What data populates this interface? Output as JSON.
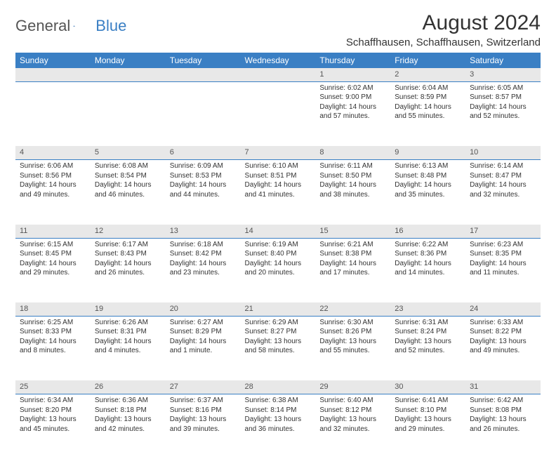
{
  "brand": {
    "part1": "General",
    "part2": "Blue"
  },
  "title": "August 2024",
  "location": "Schaffhausen, Schaffhausen, Switzerland",
  "colors": {
    "header_bg": "#3a7fc4",
    "header_text": "#ffffff",
    "daynum_bg": "#e8e8e8",
    "cell_border": "#3a7fc4",
    "body_text": "#333333",
    "page_bg": "#ffffff"
  },
  "weekdays": [
    "Sunday",
    "Monday",
    "Tuesday",
    "Wednesday",
    "Thursday",
    "Friday",
    "Saturday"
  ],
  "weeks": [
    {
      "nums": [
        "",
        "",
        "",
        "",
        "1",
        "2",
        "3"
      ],
      "cells": [
        {},
        {},
        {},
        {},
        {
          "sunrise": "Sunrise: 6:02 AM",
          "sunset": "Sunset: 9:00 PM",
          "daylight": "Daylight: 14 hours and 57 minutes."
        },
        {
          "sunrise": "Sunrise: 6:04 AM",
          "sunset": "Sunset: 8:59 PM",
          "daylight": "Daylight: 14 hours and 55 minutes."
        },
        {
          "sunrise": "Sunrise: 6:05 AM",
          "sunset": "Sunset: 8:57 PM",
          "daylight": "Daylight: 14 hours and 52 minutes."
        }
      ]
    },
    {
      "nums": [
        "4",
        "5",
        "6",
        "7",
        "8",
        "9",
        "10"
      ],
      "cells": [
        {
          "sunrise": "Sunrise: 6:06 AM",
          "sunset": "Sunset: 8:56 PM",
          "daylight": "Daylight: 14 hours and 49 minutes."
        },
        {
          "sunrise": "Sunrise: 6:08 AM",
          "sunset": "Sunset: 8:54 PM",
          "daylight": "Daylight: 14 hours and 46 minutes."
        },
        {
          "sunrise": "Sunrise: 6:09 AM",
          "sunset": "Sunset: 8:53 PM",
          "daylight": "Daylight: 14 hours and 44 minutes."
        },
        {
          "sunrise": "Sunrise: 6:10 AM",
          "sunset": "Sunset: 8:51 PM",
          "daylight": "Daylight: 14 hours and 41 minutes."
        },
        {
          "sunrise": "Sunrise: 6:11 AM",
          "sunset": "Sunset: 8:50 PM",
          "daylight": "Daylight: 14 hours and 38 minutes."
        },
        {
          "sunrise": "Sunrise: 6:13 AM",
          "sunset": "Sunset: 8:48 PM",
          "daylight": "Daylight: 14 hours and 35 minutes."
        },
        {
          "sunrise": "Sunrise: 6:14 AM",
          "sunset": "Sunset: 8:47 PM",
          "daylight": "Daylight: 14 hours and 32 minutes."
        }
      ]
    },
    {
      "nums": [
        "11",
        "12",
        "13",
        "14",
        "15",
        "16",
        "17"
      ],
      "cells": [
        {
          "sunrise": "Sunrise: 6:15 AM",
          "sunset": "Sunset: 8:45 PM",
          "daylight": "Daylight: 14 hours and 29 minutes."
        },
        {
          "sunrise": "Sunrise: 6:17 AM",
          "sunset": "Sunset: 8:43 PM",
          "daylight": "Daylight: 14 hours and 26 minutes."
        },
        {
          "sunrise": "Sunrise: 6:18 AM",
          "sunset": "Sunset: 8:42 PM",
          "daylight": "Daylight: 14 hours and 23 minutes."
        },
        {
          "sunrise": "Sunrise: 6:19 AM",
          "sunset": "Sunset: 8:40 PM",
          "daylight": "Daylight: 14 hours and 20 minutes."
        },
        {
          "sunrise": "Sunrise: 6:21 AM",
          "sunset": "Sunset: 8:38 PM",
          "daylight": "Daylight: 14 hours and 17 minutes."
        },
        {
          "sunrise": "Sunrise: 6:22 AM",
          "sunset": "Sunset: 8:36 PM",
          "daylight": "Daylight: 14 hours and 14 minutes."
        },
        {
          "sunrise": "Sunrise: 6:23 AM",
          "sunset": "Sunset: 8:35 PM",
          "daylight": "Daylight: 14 hours and 11 minutes."
        }
      ]
    },
    {
      "nums": [
        "18",
        "19",
        "20",
        "21",
        "22",
        "23",
        "24"
      ],
      "cells": [
        {
          "sunrise": "Sunrise: 6:25 AM",
          "sunset": "Sunset: 8:33 PM",
          "daylight": "Daylight: 14 hours and 8 minutes."
        },
        {
          "sunrise": "Sunrise: 6:26 AM",
          "sunset": "Sunset: 8:31 PM",
          "daylight": "Daylight: 14 hours and 4 minutes."
        },
        {
          "sunrise": "Sunrise: 6:27 AM",
          "sunset": "Sunset: 8:29 PM",
          "daylight": "Daylight: 14 hours and 1 minute."
        },
        {
          "sunrise": "Sunrise: 6:29 AM",
          "sunset": "Sunset: 8:27 PM",
          "daylight": "Daylight: 13 hours and 58 minutes."
        },
        {
          "sunrise": "Sunrise: 6:30 AM",
          "sunset": "Sunset: 8:26 PM",
          "daylight": "Daylight: 13 hours and 55 minutes."
        },
        {
          "sunrise": "Sunrise: 6:31 AM",
          "sunset": "Sunset: 8:24 PM",
          "daylight": "Daylight: 13 hours and 52 minutes."
        },
        {
          "sunrise": "Sunrise: 6:33 AM",
          "sunset": "Sunset: 8:22 PM",
          "daylight": "Daylight: 13 hours and 49 minutes."
        }
      ]
    },
    {
      "nums": [
        "25",
        "26",
        "27",
        "28",
        "29",
        "30",
        "31"
      ],
      "cells": [
        {
          "sunrise": "Sunrise: 6:34 AM",
          "sunset": "Sunset: 8:20 PM",
          "daylight": "Daylight: 13 hours and 45 minutes."
        },
        {
          "sunrise": "Sunrise: 6:36 AM",
          "sunset": "Sunset: 8:18 PM",
          "daylight": "Daylight: 13 hours and 42 minutes."
        },
        {
          "sunrise": "Sunrise: 6:37 AM",
          "sunset": "Sunset: 8:16 PM",
          "daylight": "Daylight: 13 hours and 39 minutes."
        },
        {
          "sunrise": "Sunrise: 6:38 AM",
          "sunset": "Sunset: 8:14 PM",
          "daylight": "Daylight: 13 hours and 36 minutes."
        },
        {
          "sunrise": "Sunrise: 6:40 AM",
          "sunset": "Sunset: 8:12 PM",
          "daylight": "Daylight: 13 hours and 32 minutes."
        },
        {
          "sunrise": "Sunrise: 6:41 AM",
          "sunset": "Sunset: 8:10 PM",
          "daylight": "Daylight: 13 hours and 29 minutes."
        },
        {
          "sunrise": "Sunrise: 6:42 AM",
          "sunset": "Sunset: 8:08 PM",
          "daylight": "Daylight: 13 hours and 26 minutes."
        }
      ]
    }
  ]
}
